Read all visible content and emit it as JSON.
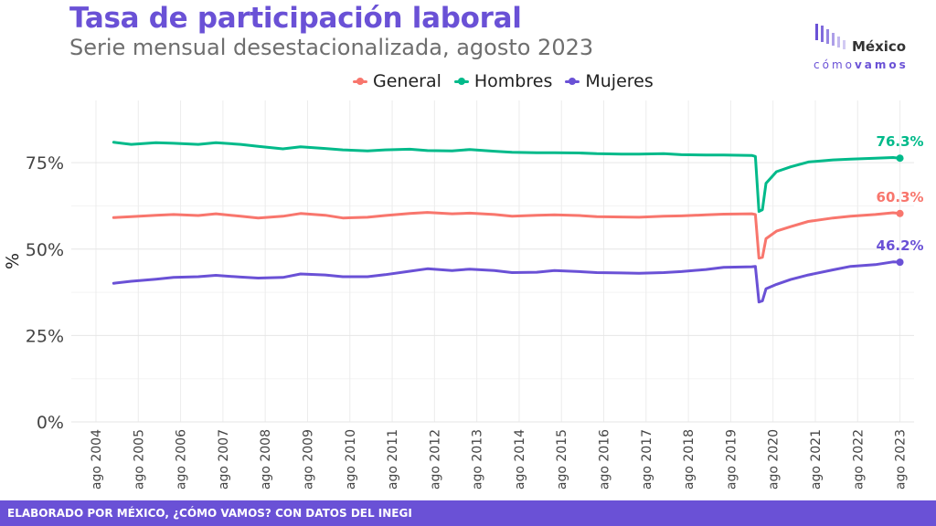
{
  "title": "Tasa de participación laboral",
  "subtitle": "Serie mensual desestacionalizada, agosto 2023",
  "logo": {
    "top": "México",
    "bottom_light": "cómo",
    "bottom_bold": "vamos"
  },
  "footer": "ELABORADO POR MÉXICO, ¿CÓMO VAMOS? CON DATOS DEL INEGI",
  "colors": {
    "General": "#f8766d",
    "Hombres": "#00ba8a",
    "Mujeres": "#6a51d6",
    "accent": "#6a51d6"
  },
  "chart_data": {
    "type": "line",
    "title": "Tasa de participación laboral",
    "subtitle": "Serie mensual desestacionalizada, agosto 2023",
    "xlabel": "",
    "ylabel": "%",
    "ylim": [
      0,
      0.93
    ],
    "yticks": [
      0,
      0.25,
      0.5,
      0.75
    ],
    "ytick_labels": [
      "0%",
      "25%",
      "50%",
      "75%"
    ],
    "xlim": [
      "2004-01",
      "2023-12"
    ],
    "xticks": [
      "2004-08",
      "2005-08",
      "2006-08",
      "2007-08",
      "2008-08",
      "2009-08",
      "2010-08",
      "2011-08",
      "2012-08",
      "2013-08",
      "2014-08",
      "2015-08",
      "2016-08",
      "2017-08",
      "2018-08",
      "2019-08",
      "2020-08",
      "2021-08",
      "2022-08",
      "2023-08"
    ],
    "xtick_labels": [
      "ago 2004",
      "ago 2005",
      "ago 2006",
      "ago 2007",
      "ago 2008",
      "ago 2009",
      "ago 2010",
      "ago 2011",
      "ago 2012",
      "ago 2013",
      "ago 2014",
      "ago 2015",
      "ago 2016",
      "ago 2017",
      "ago 2018",
      "ago 2019",
      "ago 2020",
      "ago 2021",
      "ago 2022",
      "ago 2023"
    ],
    "grid": true,
    "legend": "top",
    "series": [
      {
        "name": "General",
        "color": "#f8766d",
        "end_label": "60.3%",
        "points": [
          [
            "2005-01",
            0.591
          ],
          [
            "2005-06",
            0.594
          ],
          [
            "2006-01",
            0.598
          ],
          [
            "2006-06",
            0.6
          ],
          [
            "2007-01",
            0.597
          ],
          [
            "2007-06",
            0.602
          ],
          [
            "2008-01",
            0.595
          ],
          [
            "2008-06",
            0.59
          ],
          [
            "2009-01",
            0.595
          ],
          [
            "2009-06",
            0.603
          ],
          [
            "2010-01",
            0.598
          ],
          [
            "2010-06",
            0.59
          ],
          [
            "2011-01",
            0.592
          ],
          [
            "2011-06",
            0.597
          ],
          [
            "2012-01",
            0.603
          ],
          [
            "2012-06",
            0.606
          ],
          [
            "2013-01",
            0.602
          ],
          [
            "2013-06",
            0.604
          ],
          [
            "2014-01",
            0.6
          ],
          [
            "2014-06",
            0.595
          ],
          [
            "2015-01",
            0.598
          ],
          [
            "2015-06",
            0.599
          ],
          [
            "2016-01",
            0.597
          ],
          [
            "2016-06",
            0.594
          ],
          [
            "2017-01",
            0.593
          ],
          [
            "2017-06",
            0.592
          ],
          [
            "2018-01",
            0.595
          ],
          [
            "2018-06",
            0.596
          ],
          [
            "2019-01",
            0.599
          ],
          [
            "2019-06",
            0.601
          ],
          [
            "2020-02",
            0.602
          ],
          [
            "2020-03",
            0.6
          ],
          [
            "2020-04",
            0.474
          ],
          [
            "2020-05",
            0.476
          ],
          [
            "2020-06",
            0.53
          ],
          [
            "2020-09",
            0.552
          ],
          [
            "2021-01",
            0.565
          ],
          [
            "2021-06",
            0.58
          ],
          [
            "2022-01",
            0.59
          ],
          [
            "2022-06",
            0.595
          ],
          [
            "2023-01",
            0.6
          ],
          [
            "2023-06",
            0.605
          ],
          [
            "2023-08",
            0.603
          ]
        ]
      },
      {
        "name": "Hombres",
        "color": "#00ba8a",
        "end_label": "76.3%",
        "points": [
          [
            "2005-01",
            0.809
          ],
          [
            "2005-06",
            0.803
          ],
          [
            "2006-01",
            0.808
          ],
          [
            "2006-06",
            0.806
          ],
          [
            "2007-01",
            0.803
          ],
          [
            "2007-06",
            0.808
          ],
          [
            "2008-01",
            0.803
          ],
          [
            "2008-06",
            0.797
          ],
          [
            "2009-01",
            0.79
          ],
          [
            "2009-06",
            0.796
          ],
          [
            "2010-01",
            0.791
          ],
          [
            "2010-06",
            0.787
          ],
          [
            "2011-01",
            0.784
          ],
          [
            "2011-06",
            0.787
          ],
          [
            "2012-01",
            0.789
          ],
          [
            "2012-06",
            0.785
          ],
          [
            "2013-01",
            0.784
          ],
          [
            "2013-06",
            0.788
          ],
          [
            "2014-01",
            0.783
          ],
          [
            "2014-06",
            0.78
          ],
          [
            "2015-01",
            0.779
          ],
          [
            "2015-06",
            0.779
          ],
          [
            "2016-01",
            0.778
          ],
          [
            "2016-06",
            0.776
          ],
          [
            "2017-01",
            0.775
          ],
          [
            "2017-06",
            0.775
          ],
          [
            "2018-01",
            0.776
          ],
          [
            "2018-06",
            0.773
          ],
          [
            "2019-01",
            0.772
          ],
          [
            "2019-06",
            0.772
          ],
          [
            "2020-02",
            0.771
          ],
          [
            "2020-03",
            0.768
          ],
          [
            "2020-04",
            0.609
          ],
          [
            "2020-05",
            0.614
          ],
          [
            "2020-06",
            0.69
          ],
          [
            "2020-09",
            0.724
          ],
          [
            "2021-01",
            0.738
          ],
          [
            "2021-06",
            0.752
          ],
          [
            "2022-01",
            0.758
          ],
          [
            "2022-06",
            0.76
          ],
          [
            "2023-01",
            0.763
          ],
          [
            "2023-06",
            0.765
          ],
          [
            "2023-08",
            0.763
          ]
        ]
      },
      {
        "name": "Mujeres",
        "color": "#6a51d6",
        "end_label": "46.2%",
        "points": [
          [
            "2005-01",
            0.401
          ],
          [
            "2005-06",
            0.407
          ],
          [
            "2006-01",
            0.413
          ],
          [
            "2006-06",
            0.418
          ],
          [
            "2007-01",
            0.42
          ],
          [
            "2007-06",
            0.424
          ],
          [
            "2008-01",
            0.419
          ],
          [
            "2008-06",
            0.416
          ],
          [
            "2009-01",
            0.418
          ],
          [
            "2009-06",
            0.428
          ],
          [
            "2010-01",
            0.425
          ],
          [
            "2010-06",
            0.42
          ],
          [
            "2011-01",
            0.42
          ],
          [
            "2011-06",
            0.426
          ],
          [
            "2012-01",
            0.436
          ],
          [
            "2012-06",
            0.443
          ],
          [
            "2013-01",
            0.438
          ],
          [
            "2013-06",
            0.442
          ],
          [
            "2014-01",
            0.438
          ],
          [
            "2014-06",
            0.432
          ],
          [
            "2015-01",
            0.433
          ],
          [
            "2015-06",
            0.438
          ],
          [
            "2016-01",
            0.435
          ],
          [
            "2016-06",
            0.432
          ],
          [
            "2017-01",
            0.431
          ],
          [
            "2017-06",
            0.43
          ],
          [
            "2018-01",
            0.432
          ],
          [
            "2018-06",
            0.435
          ],
          [
            "2019-01",
            0.441
          ],
          [
            "2019-06",
            0.447
          ],
          [
            "2020-02",
            0.449
          ],
          [
            "2020-03",
            0.45
          ],
          [
            "2020-04",
            0.347
          ],
          [
            "2020-05",
            0.35
          ],
          [
            "2020-06",
            0.385
          ],
          [
            "2020-09",
            0.398
          ],
          [
            "2021-01",
            0.412
          ],
          [
            "2021-06",
            0.425
          ],
          [
            "2022-01",
            0.44
          ],
          [
            "2022-06",
            0.45
          ],
          [
            "2023-01",
            0.455
          ],
          [
            "2023-06",
            0.463
          ],
          [
            "2023-08",
            0.462
          ]
        ]
      }
    ]
  }
}
